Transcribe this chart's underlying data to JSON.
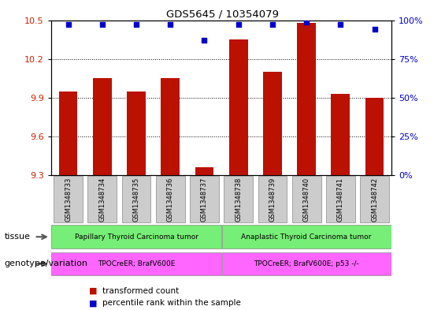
{
  "title": "GDS5645 / 10354079",
  "samples": [
    "GSM1348733",
    "GSM1348734",
    "GSM1348735",
    "GSM1348736",
    "GSM1348737",
    "GSM1348738",
    "GSM1348739",
    "GSM1348740",
    "GSM1348741",
    "GSM1348742"
  ],
  "transformed_counts": [
    9.95,
    10.05,
    9.95,
    10.05,
    9.36,
    10.35,
    10.1,
    10.48,
    9.93,
    9.9
  ],
  "percentile_ranks": [
    97,
    97,
    97,
    97,
    87,
    97,
    97,
    99,
    97,
    94
  ],
  "ylim_left": [
    9.3,
    10.5
  ],
  "ylim_right": [
    0,
    100
  ],
  "yticks_left": [
    9.3,
    9.6,
    9.9,
    10.2,
    10.5
  ],
  "yticks_right": [
    0,
    25,
    50,
    75,
    100
  ],
  "bar_color": "#bb1100",
  "dot_color": "#0000cc",
  "grid_color": "#000000",
  "tissue_groups": [
    {
      "label": "Papillary Thyroid Carcinoma tumor",
      "start": 0,
      "end": 5,
      "color": "#77ee77"
    },
    {
      "label": "Anaplastic Thyroid Carcinoma tumor",
      "start": 5,
      "end": 10,
      "color": "#77ee77"
    }
  ],
  "genotype_groups": [
    {
      "label": "TPOCreER; BrafV600E",
      "start": 0,
      "end": 5,
      "color": "#ff66ff"
    },
    {
      "label": "TPOCreER; BrafV600E; p53 -/-",
      "start": 5,
      "end": 10,
      "color": "#ff66ff"
    }
  ],
  "legend_items": [
    {
      "label": "transformed count",
      "color": "#bb1100"
    },
    {
      "label": "percentile rank within the sample",
      "color": "#0000cc"
    }
  ],
  "bar_width": 0.55,
  "ylabel_left_color": "#cc2200",
  "ylabel_right_color": "#0000cc",
  "tissue_label": "tissue",
  "genotype_label": "genotype/variation"
}
